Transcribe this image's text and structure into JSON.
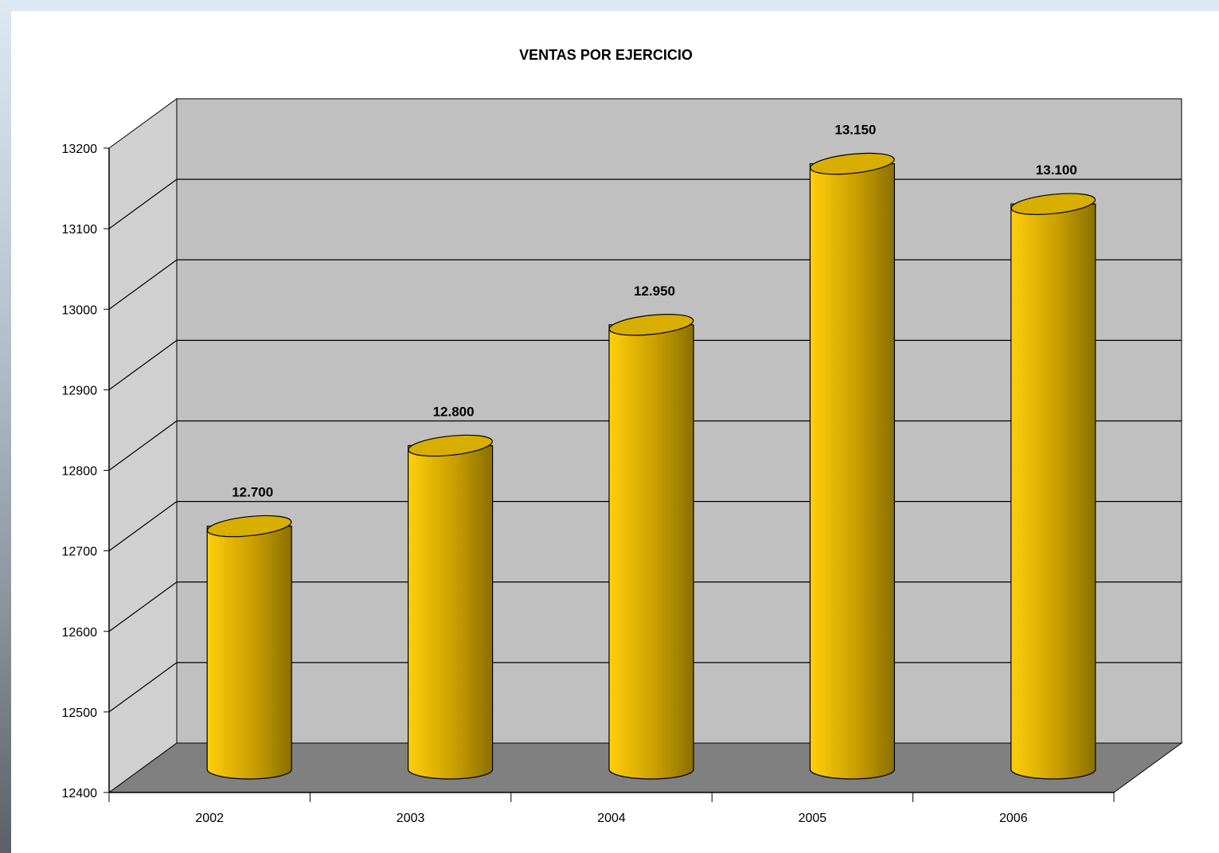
{
  "chart_data": {
    "type": "bar",
    "title": "VENTAS POR EJERCICIO",
    "xlabel": "",
    "ylabel": "",
    "categories": [
      "2002",
      "2003",
      "2004",
      "2005",
      "2006"
    ],
    "values": [
      12700,
      12800,
      12950,
      13150,
      13100
    ],
    "data_labels": [
      "12.700",
      "12.800",
      "12.950",
      "13.150",
      "13.100"
    ],
    "ylim": [
      12400,
      13200
    ],
    "yticks": [
      "12400",
      "12500",
      "12600",
      "12700",
      "12800",
      "12900",
      "13000",
      "13100",
      "13200"
    ],
    "grid": true,
    "legend": "none",
    "style": "3d-cylinder",
    "colors": {
      "bar_light": "#ffcf0a",
      "bar_dark": "#8a7000",
      "bar_top": "#d8ae00",
      "back_wall": "#c0c0c0",
      "side_wall": "#d0d0d0",
      "floor": "#808080"
    }
  }
}
